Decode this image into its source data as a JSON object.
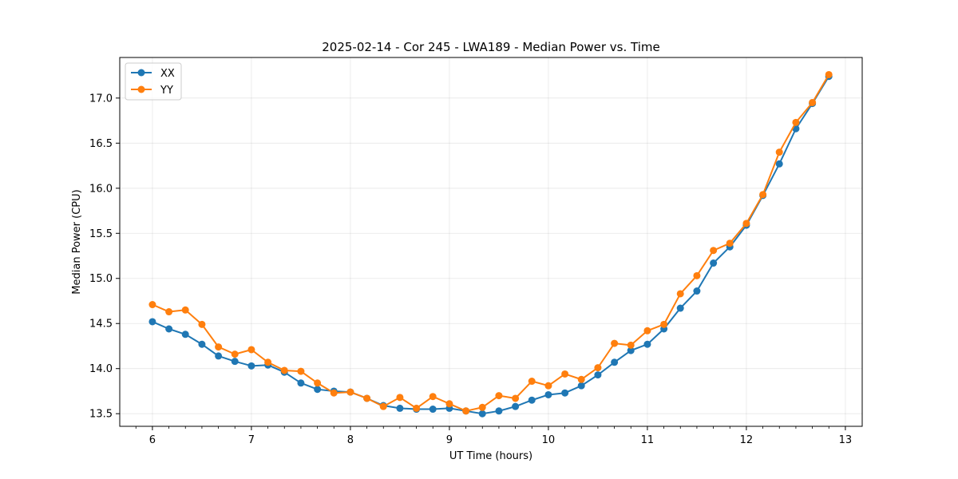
{
  "chart_data": {
    "type": "line",
    "title": "2025-02-14 - Cor 245 - LWA189 - Median Power vs. Time",
    "xlabel": "UT Time (hours)",
    "ylabel": "Median Power (CPU)",
    "xlim": [
      5.67,
      13.17
    ],
    "ylim": [
      13.36,
      17.45
    ],
    "xticks": [
      6,
      7,
      8,
      9,
      10,
      11,
      12,
      13
    ],
    "xtick_labels": [
      "6",
      "7",
      "8",
      "9",
      "10",
      "11",
      "12",
      "13"
    ],
    "yticks": [
      13.5,
      14.0,
      14.5,
      15.0,
      15.5,
      16.0,
      16.5,
      17.0
    ],
    "ytick_labels": [
      "13.5",
      "14.0",
      "14.5",
      "15.0",
      "15.5",
      "16.0",
      "16.5",
      "17.0"
    ],
    "grid": true,
    "legend_position": "top-left",
    "x": [
      6.0,
      6.167,
      6.333,
      6.5,
      6.667,
      6.833,
      7.0,
      7.167,
      7.333,
      7.5,
      7.667,
      7.833,
      8.0,
      8.167,
      8.333,
      8.5,
      8.667,
      8.833,
      9.0,
      9.167,
      9.333,
      9.5,
      9.667,
      9.833,
      10.0,
      10.167,
      10.333,
      10.5,
      10.667,
      10.833,
      11.0,
      11.167,
      11.333,
      11.5,
      11.667,
      11.833,
      12.0,
      12.167,
      12.333,
      12.5,
      12.667,
      12.833
    ],
    "series": [
      {
        "name": "XX",
        "color": "#1f77b4",
        "values": [
          14.52,
          14.44,
          14.38,
          14.27,
          14.14,
          14.08,
          14.03,
          14.04,
          13.96,
          13.84,
          13.77,
          13.75,
          13.74,
          13.67,
          13.59,
          13.56,
          13.55,
          13.55,
          13.56,
          13.53,
          13.5,
          13.53,
          13.58,
          13.65,
          13.71,
          13.73,
          13.81,
          13.93,
          14.07,
          14.2,
          14.27,
          14.44,
          14.67,
          14.86,
          15.17,
          15.35,
          15.59,
          15.92,
          16.27,
          16.66,
          16.94,
          17.24
        ]
      },
      {
        "name": "YY",
        "color": "#ff7f0e",
        "values": [
          14.71,
          14.63,
          14.65,
          14.49,
          14.24,
          14.16,
          14.21,
          14.07,
          13.98,
          13.97,
          13.84,
          13.73,
          13.74,
          13.67,
          13.58,
          13.68,
          13.56,
          13.69,
          13.61,
          13.53,
          13.57,
          13.7,
          13.67,
          13.86,
          13.81,
          13.94,
          13.88,
          14.01,
          14.28,
          14.26,
          14.42,
          14.49,
          14.83,
          15.03,
          15.31,
          15.39,
          15.61,
          15.93,
          16.4,
          16.73,
          16.95,
          17.26
        ]
      }
    ]
  }
}
